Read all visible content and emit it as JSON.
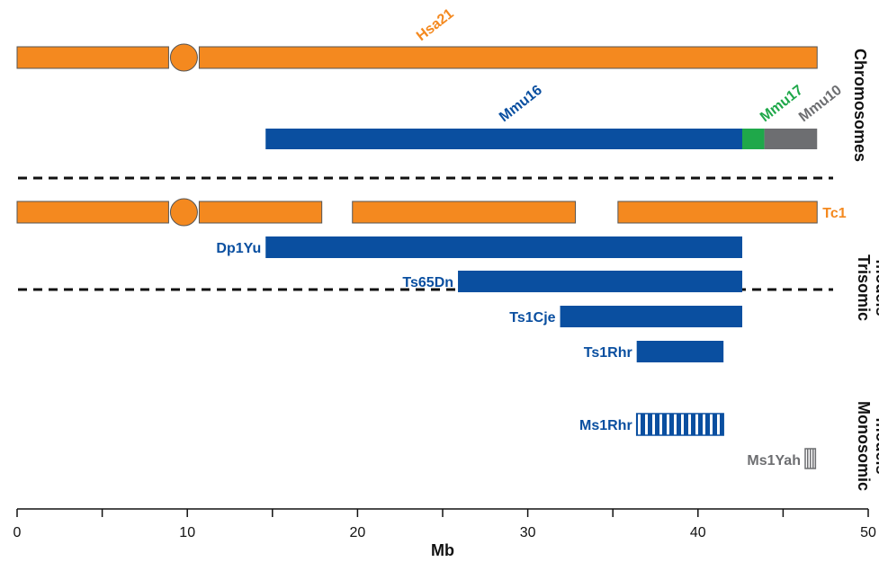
{
  "colors": {
    "human": "#f4891f",
    "mouse16": "#0a4fa0",
    "mouse17": "#1fa84a",
    "mouse10": "#6d6e71",
    "outline": "#555555"
  },
  "sections": {
    "chromosomes": "Chromosomes",
    "trisomic": [
      "Trisomic",
      "models"
    ],
    "monosomic": [
      "Monosomic",
      "models"
    ]
  },
  "axis": {
    "label": "Mb",
    "min": 0,
    "max": 50,
    "major_ticks": [
      0,
      10,
      20,
      30,
      40,
      50
    ],
    "minor_step": 5
  },
  "chromosomes": {
    "hsa21": {
      "label": "Hsa21",
      "start": 0,
      "end": 47,
      "centromere": 9.8,
      "color_key": "human"
    },
    "mouse": [
      {
        "label": "Mmu16",
        "start": 14.6,
        "end": 42.6,
        "color_key": "mouse16"
      },
      {
        "label": "Mmu17",
        "start": 42.6,
        "end": 43.9,
        "color_key": "mouse17"
      },
      {
        "label": "Mmu10",
        "start": 43.9,
        "end": 47,
        "color_key": "mouse10"
      }
    ]
  },
  "trisomic_models": [
    {
      "label": "Tc1",
      "type": "human",
      "segments": [
        [
          0,
          17.9
        ],
        [
          19.7,
          32.8
        ],
        [
          35.3,
          47
        ]
      ],
      "centromere": 9.8,
      "label_side": "right"
    },
    {
      "label": "Dp1Yu",
      "type": "mouse",
      "start": 14.6,
      "end": 42.6,
      "label_side": "left"
    },
    {
      "label": "Ts65Dn",
      "type": "mouse",
      "start": 25.9,
      "end": 42.6,
      "label_side": "left"
    },
    {
      "label": "Ts1Cje",
      "type": "mouse",
      "start": 31.9,
      "end": 42.6,
      "label_side": "left"
    },
    {
      "label": "Ts1Rhr",
      "type": "mouse",
      "start": 36.4,
      "end": 41.5,
      "label_side": "left"
    }
  ],
  "monosomic_models": [
    {
      "label": "Ms1Rhr",
      "start": 36.4,
      "end": 41.5,
      "color_key": "mouse16",
      "pattern": "stripes"
    },
    {
      "label": "Ms1Yah",
      "start": 46.3,
      "end": 46.9,
      "color_key": "mouse10",
      "pattern": "stripes"
    }
  ]
}
